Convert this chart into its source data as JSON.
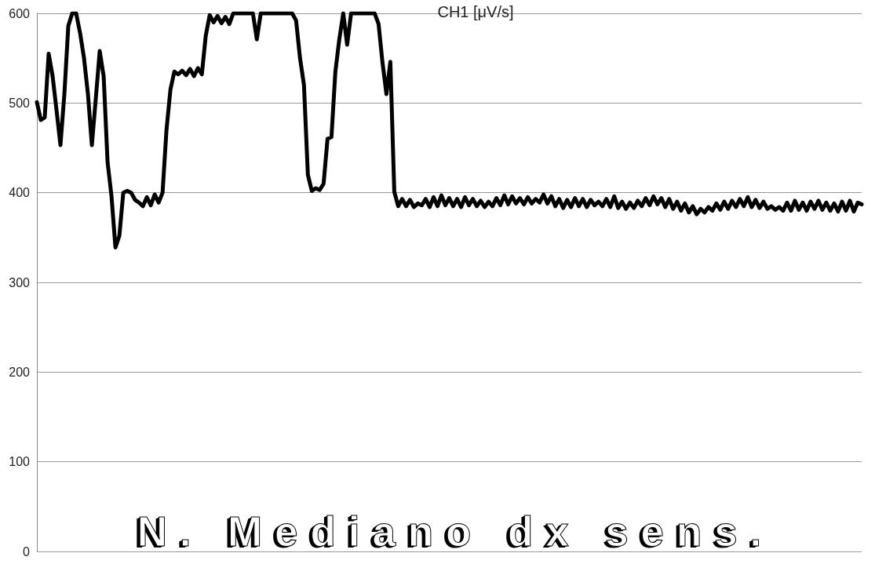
{
  "chart_data": {
    "type": "line",
    "title": "CH1 [μV/s]",
    "annotations": [
      "N. Mediano dx sens."
    ],
    "categories": [
      null,
      null,
      null,
      null,
      null,
      null,
      null,
      null,
      null,
      null,
      null,
      null,
      null,
      null,
      null,
      null,
      null,
      null,
      null,
      null,
      null,
      null,
      null,
      null,
      null,
      null,
      null,
      null,
      null,
      null,
      null,
      null,
      null,
      null,
      null,
      null,
      null,
      null,
      null,
      null,
      null,
      null,
      null,
      null,
      null,
      null,
      null,
      null,
      null,
      null,
      null,
      null,
      null,
      null,
      null,
      null,
      null,
      null,
      null,
      null,
      null,
      null,
      null,
      null,
      null,
      null,
      null,
      null,
      null,
      null,
      null,
      null,
      null,
      null,
      null,
      null,
      null,
      null,
      null,
      null,
      null,
      null,
      null,
      null,
      null,
      null,
      null,
      null,
      null,
      null,
      null,
      null,
      null,
      null,
      null,
      null,
      null,
      null,
      null,
      null,
      null,
      null,
      null,
      null,
      null,
      null,
      null,
      null,
      null,
      null,
      null,
      null,
      null,
      null,
      null,
      null,
      null,
      null,
      null,
      null,
      null,
      null,
      null,
      null,
      null,
      null,
      null,
      null,
      null,
      null,
      null,
      null,
      null,
      null,
      null,
      null,
      null,
      null,
      null,
      null,
      null,
      null,
      null,
      null,
      null,
      null,
      null,
      null,
      null,
      null,
      null,
      null,
      null,
      null,
      null,
      null,
      null,
      null,
      null,
      null,
      null,
      null,
      null,
      null,
      null,
      null,
      null,
      null,
      null,
      null,
      null,
      null,
      null,
      null,
      null,
      null,
      null,
      null,
      null,
      null,
      null,
      null,
      null,
      null,
      null,
      null,
      null,
      null,
      null,
      null,
      null,
      null,
      null,
      null,
      null,
      null,
      null,
      null,
      null,
      null,
      null,
      null,
      null,
      null,
      null,
      null,
      null,
      null,
      null,
      null,
      null
    ],
    "values": [
      501,
      481,
      484,
      555,
      530,
      492,
      453,
      510,
      586,
      600,
      600,
      578,
      550,
      510,
      453,
      505,
      558,
      530,
      434,
      396,
      339,
      352,
      400,
      402,
      400,
      392,
      389,
      385,
      395,
      386,
      398,
      389,
      400,
      470,
      515,
      535,
      532,
      536,
      531,
      538,
      530,
      539,
      532,
      575,
      598,
      590,
      597,
      589,
      596,
      588,
      600,
      null,
      null,
      null,
      null,
      600,
      571,
      600,
      null,
      null,
      null,
      null,
      null,
      null,
      null,
      600,
      592,
      550,
      520,
      420,
      402,
      405,
      403,
      410,
      460,
      462,
      535,
      571,
      600,
      565,
      600,
      null,
      null,
      null,
      null,
      null,
      600,
      588,
      545,
      510,
      546,
      401,
      385,
      393,
      385,
      392,
      384,
      388,
      386,
      393,
      384,
      395,
      385,
      397,
      386,
      394,
      385,
      393,
      384,
      395,
      386,
      393,
      385,
      391,
      384,
      390,
      385,
      394,
      386,
      397,
      387,
      396,
      388,
      394,
      387,
      395,
      388,
      393,
      389,
      398,
      388,
      396,
      385,
      393,
      383,
      392,
      384,
      394,
      385,
      393,
      384,
      392,
      386,
      390,
      385,
      393,
      384,
      396,
      383,
      390,
      382,
      389,
      383,
      391,
      385,
      394,
      386,
      396,
      387,
      394,
      384,
      393,
      382,
      390,
      380,
      388,
      378,
      385,
      376,
      382,
      378,
      384,
      380,
      388,
      381,
      390,
      382,
      391,
      384,
      393,
      385,
      395,
      384,
      392,
      383,
      390,
      382,
      385,
      381,
      384,
      380,
      389,
      380,
      391,
      381,
      389,
      380,
      390,
      382,
      391,
      381,
      389,
      380,
      388,
      379,
      390,
      380,
      391,
      379,
      389,
      387
    ],
    "color": "#000000",
    "ylim": [
      0,
      600
    ],
    "yticks": [
      0,
      100,
      200,
      300,
      400,
      500,
      600
    ],
    "grid": "y",
    "tick_labels": "y",
    "marker": "none",
    "line_style": "solid"
  }
}
